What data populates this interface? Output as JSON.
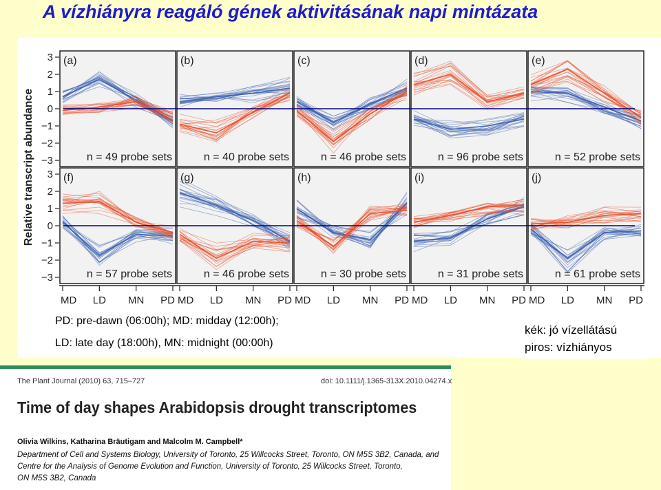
{
  "title": "A vízhiányra reagáló gének aktivitásának napi mintázata",
  "abbrev_line1": "PD: pre-dawn (06:00h); MD: midday (12:00h);",
  "abbrev_line2": "LD: late day (18:00h), MN: midnight (00:00h)",
  "legend_blue": "kék: jó vízellátású",
  "legend_red": "piros:  vízhiányos",
  "colors": {
    "blue": "#3a5fb0",
    "red": "#e8502a",
    "zero_line": "#000080",
    "title": "#1c1ccc"
  },
  "chart_data": {
    "type": "line",
    "ylabel": "Relative transcript abundance",
    "x": [
      "MD",
      "LD",
      "MN",
      "PD"
    ],
    "ylim": [
      -3,
      3
    ],
    "yticks": [
      "3",
      "2",
      "1",
      "0",
      "−1",
      "−2",
      "−3"
    ],
    "panels": [
      {
        "label": "(a)",
        "count": "n = 49 probe sets",
        "blue": [
          0.7,
          1.7,
          0.5,
          -0.7
        ],
        "red": [
          -0.1,
          0.1,
          0.4,
          -0.5
        ]
      },
      {
        "label": "(b)",
        "count": "n = 40 probe sets",
        "blue": [
          0.4,
          0.7,
          0.9,
          1.2
        ],
        "red": [
          -0.9,
          -1.4,
          -0.2,
          0.9
        ]
      },
      {
        "label": "(c)",
        "count": "n = 46 probe sets",
        "blue": [
          0.4,
          -0.8,
          0.3,
          1.2
        ],
        "red": [
          -0.1,
          -1.9,
          -0.3,
          1.0
        ]
      },
      {
        "label": "(d)",
        "count": "n = 96 probe sets",
        "blue": [
          -0.6,
          -1.2,
          -1.0,
          -0.6
        ],
        "red": [
          1.4,
          2.0,
          0.4,
          0.9
        ]
      },
      {
        "label": "(e)",
        "count": "n = 52 probe sets",
        "blue": [
          1.0,
          0.9,
          0.1,
          -0.7
        ],
        "red": [
          1.4,
          2.3,
          0.9,
          -0.5
        ]
      },
      {
        "label": "(f)",
        "count": "n = 57 probe sets",
        "blue": [
          0.2,
          -1.7,
          -0.5,
          -0.6
        ],
        "red": [
          1.3,
          1.4,
          0.2,
          -0.4
        ]
      },
      {
        "label": "(g)",
        "count": "n = 46 probe sets",
        "blue": [
          1.9,
          1.2,
          0.3,
          -0.9
        ],
        "red": [
          -0.5,
          -1.9,
          -0.9,
          -1.0
        ]
      },
      {
        "label": "(h)",
        "count": "n = 30 probe sets",
        "blue": [
          1.0,
          -0.4,
          -0.8,
          1.3
        ],
        "red": [
          0.3,
          -1.2,
          0.7,
          0.9
        ]
      },
      {
        "label": "(i)",
        "count": "n = 31 probe sets",
        "blue": [
          -0.9,
          -0.7,
          0.4,
          1.1
        ],
        "red": [
          0.2,
          0.6,
          1.1,
          1.2
        ]
      },
      {
        "label": "(j)",
        "count": "n = 61 probe sets",
        "blue": [
          -0.2,
          -1.9,
          -0.4,
          -0.3
        ],
        "red": [
          0.1,
          0.2,
          0.6,
          0.7
        ]
      }
    ]
  },
  "paper": {
    "journal": "The Plant Journal (2010) 63, 715–727",
    "doi": "doi: 10.1111/j.1365-313X.2010.04274.x",
    "title": "Time of day shapes Arabidopsis drought transcriptomes",
    "authors": "Olivia Wilkins, Katharina Bräutigam and Malcolm M. Campbell*",
    "aff1": "Department of Cell and Systems Biology, University of Toronto, 25 Willcocks Street, Toronto, ON M5S 3B2, Canada, and",
    "aff2": "Centre for the Analysis of Genome Evolution and Function, University of Toronto, 25 Willcocks Street, Toronto,",
    "aff3": "ON M5S 3B2, Canada"
  }
}
